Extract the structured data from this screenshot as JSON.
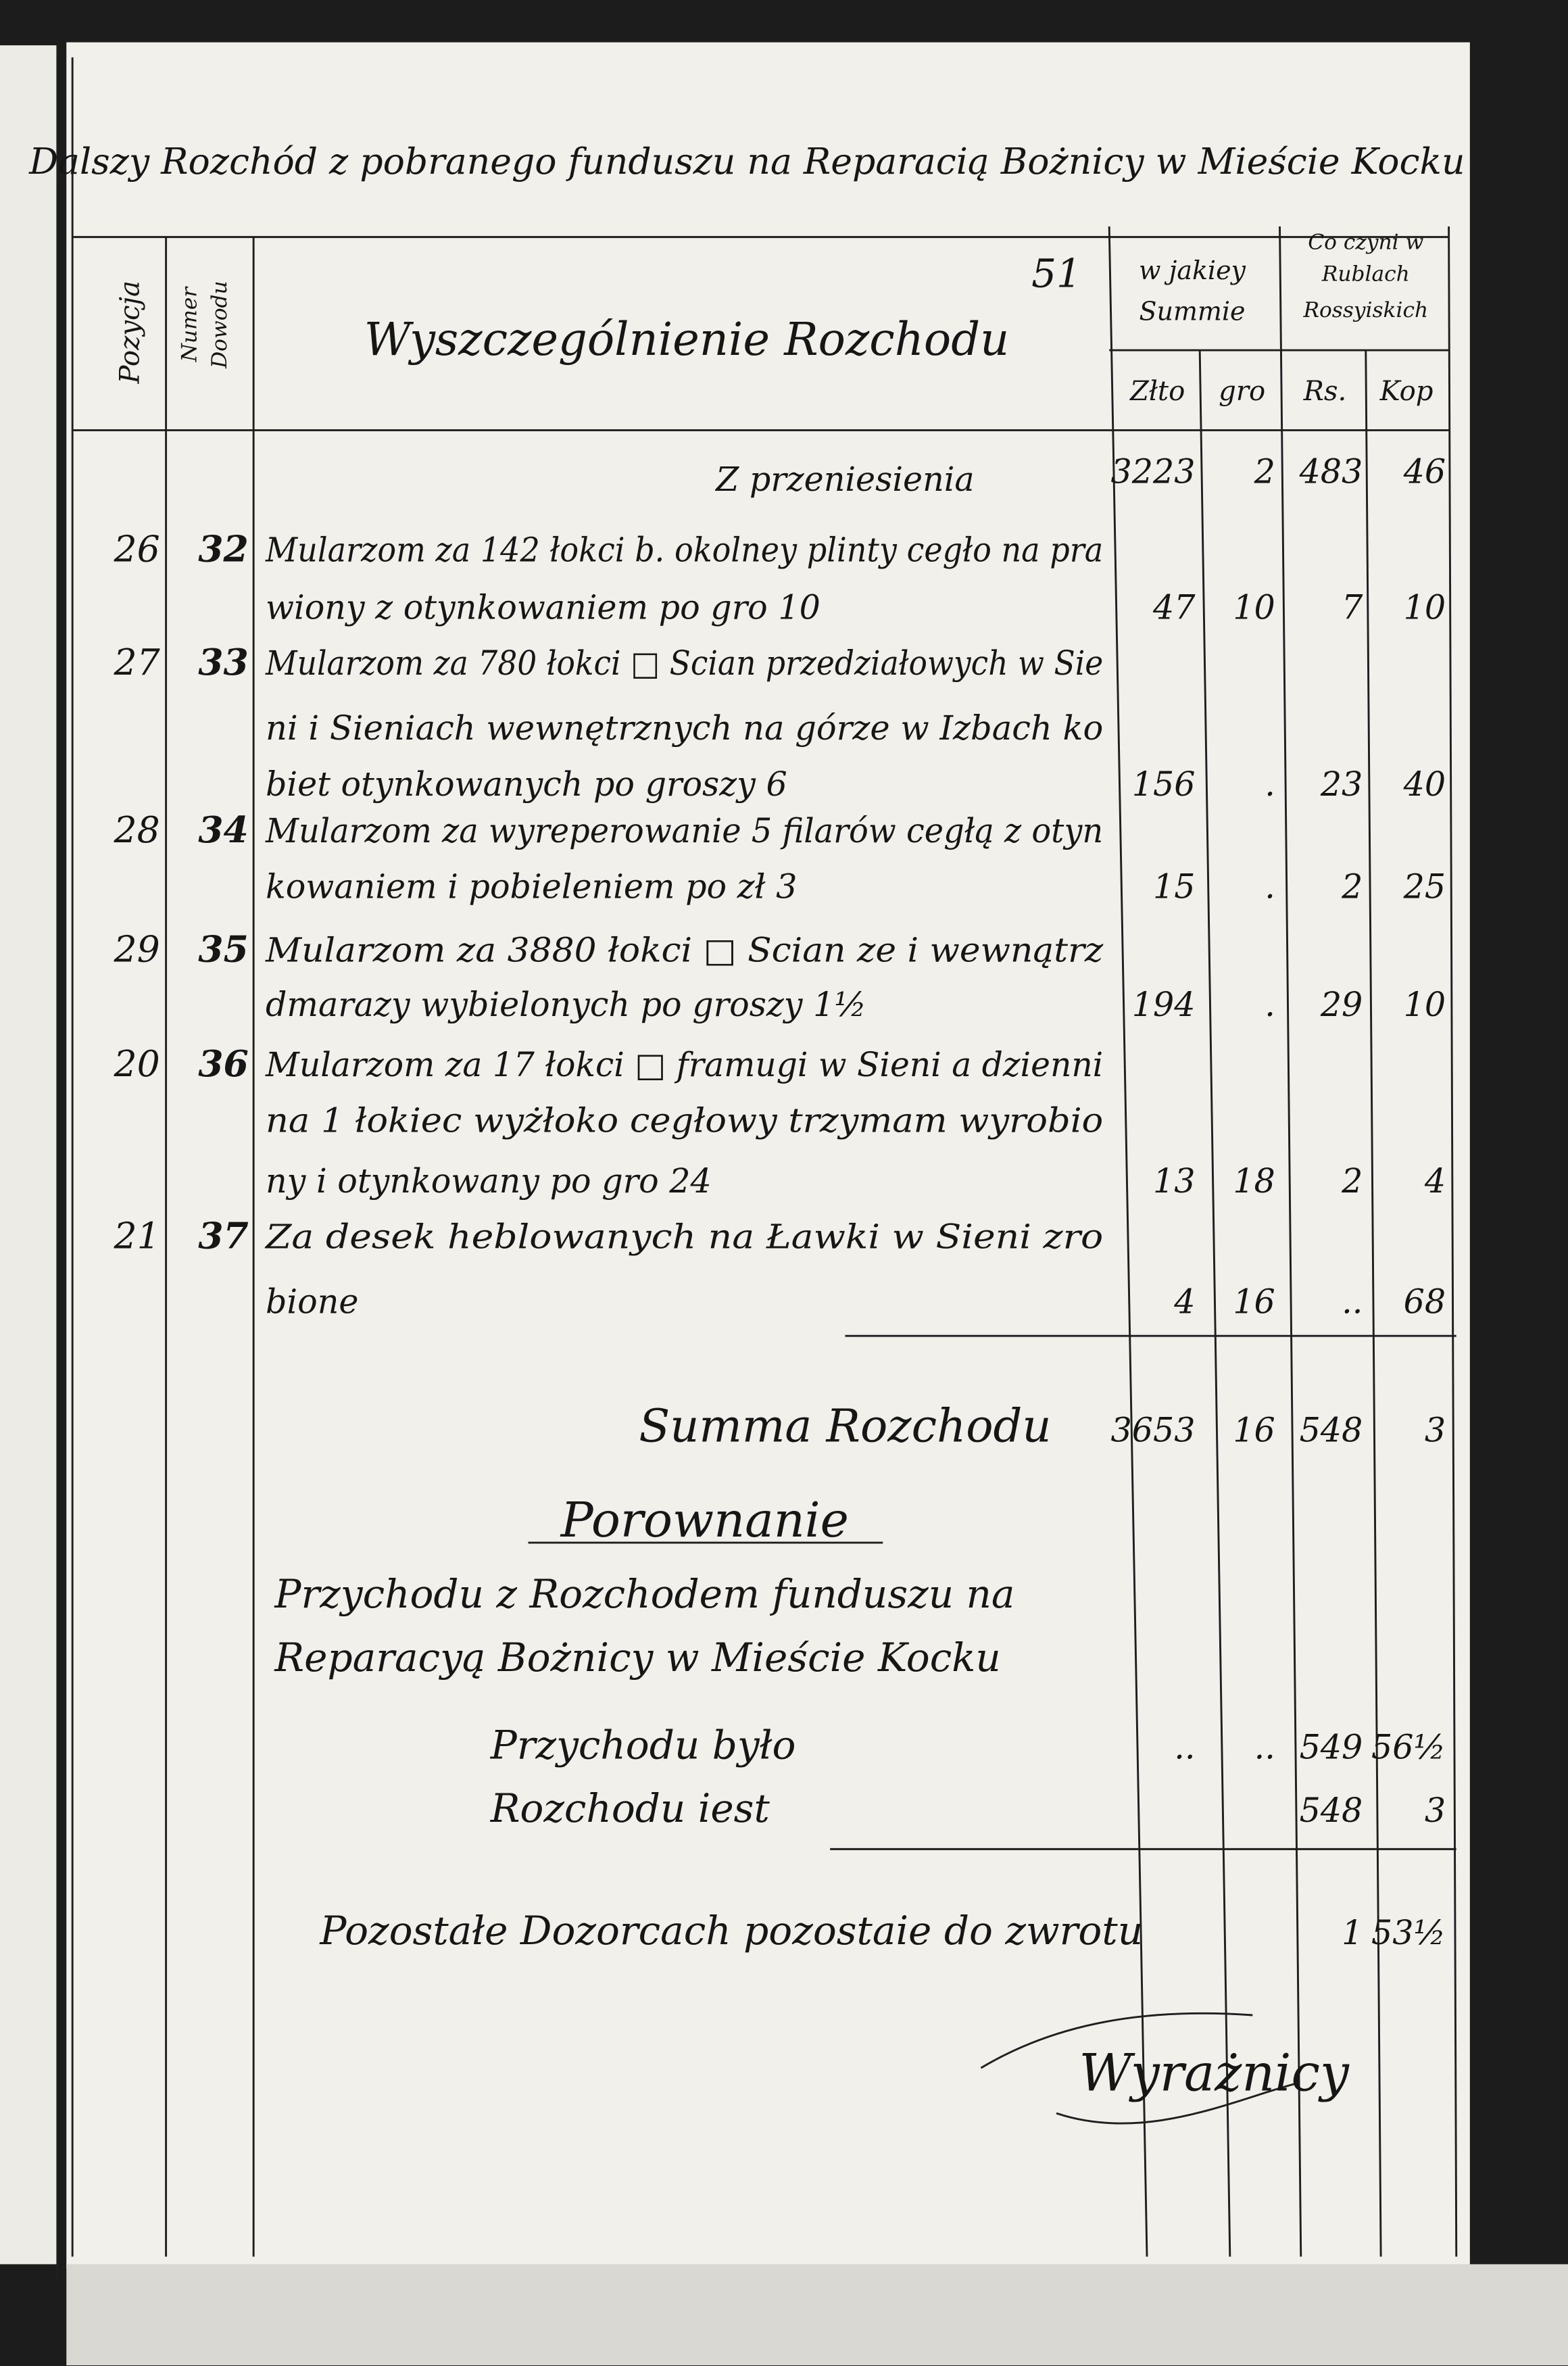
{
  "header": {
    "title": "Dalszy Rozchód z pobranego funduszu na Reparacią Bożnicy w Mieście Kocku",
    "page_number": "51",
    "columns": {
      "position": "Pozycja",
      "voucher": [
        "Numer",
        "Dowodu"
      ],
      "description": "Wyszczególnienie Rozchodu",
      "amount_group": [
        "w jakiey",
        "Summie"
      ],
      "zl": "Złto",
      "gr": "gro",
      "rubles_group": [
        "Co czyni w",
        "Rublach",
        "Rossyiskich"
      ],
      "rs": "Rs.",
      "kop": "Kop"
    }
  },
  "carried_forward": {
    "label": "Z przeniesienia",
    "zl": "3223",
    "gr": "2",
    "rs": "483",
    "kop": "46"
  },
  "rows": [
    {
      "position": "26",
      "voucher": "32",
      "description": [
        "Mularzom za 142 łokci b. okolney plinty cegło na pra",
        "wiony z otynkowaniem po gro 10"
      ],
      "zl": "47",
      "gr": "10",
      "rs": "7",
      "kop": "10"
    },
    {
      "position": "27",
      "voucher": "33",
      "description": [
        "Mularzom za 780 łokci □ Scian przedziałowych w Sie",
        "ni i Sieniach wewnętrznych na górze w Izbach ko",
        "biet otynkowanych po groszy 6"
      ],
      "zl": "156",
      "gr": ".",
      "rs": "23",
      "kop": "40"
    },
    {
      "position": "28",
      "voucher": "34",
      "description": [
        "Mularzom za wyreperowanie 5 filarów cegłą z otyn",
        "kowaniem i pobieleniem po zł 3"
      ],
      "zl": "15",
      "gr": ".",
      "rs": "2",
      "kop": "25"
    },
    {
      "position": "29",
      "voucher": "35",
      "description": [
        "Mularzom za 3880 łokci □ Scian ze i wewnątrz",
        "dmarazy wybielonych po groszy 1½"
      ],
      "zl": "194",
      "gr": ".",
      "rs": "29",
      "kop": "10"
    },
    {
      "position": "20",
      "voucher": "36",
      "description": [
        "Mularzom za 17 łokci □ framugi w Sieni a dzienni",
        "na 1 łokiec wyżłoko cegłowy trzymam wyrobio",
        "ny i otynkowany po gro 24"
      ],
      "zl": "13",
      "gr": "18",
      "rs": "2",
      "kop": "4"
    },
    {
      "position": "21",
      "voucher": "37",
      "description": [
        "Za desek heblowanych na Ławki w Sieni zro",
        "bione"
      ],
      "zl": "4",
      "gr": "16",
      "rs": "..",
      "kop": "68"
    }
  ],
  "total": {
    "label": "Summa Rozchodu",
    "zl": "3653",
    "gr": "16",
    "rs": "548",
    "kop": "3"
  },
  "comparison": {
    "title": "Porownanie",
    "text": [
      "Przychodu z Rozchodem funduszu na",
      "Reparacyą Bożnicy w Mieście Kocku"
    ],
    "rows": [
      {
        "label": "Przychodu było",
        "zl": "..",
        "gr": "..",
        "rs": "549",
        "kop": "56½"
      },
      {
        "label": "Rozchodu iest",
        "rs": "548",
        "kop": "3"
      }
    ]
  },
  "remainder": {
    "label": "Pozostałe Dozorcach pozostaie do zwrotu",
    "rs": "1",
    "kop": "53½"
  },
  "signature": {
    "name": "Wyrażnicy"
  }
}
